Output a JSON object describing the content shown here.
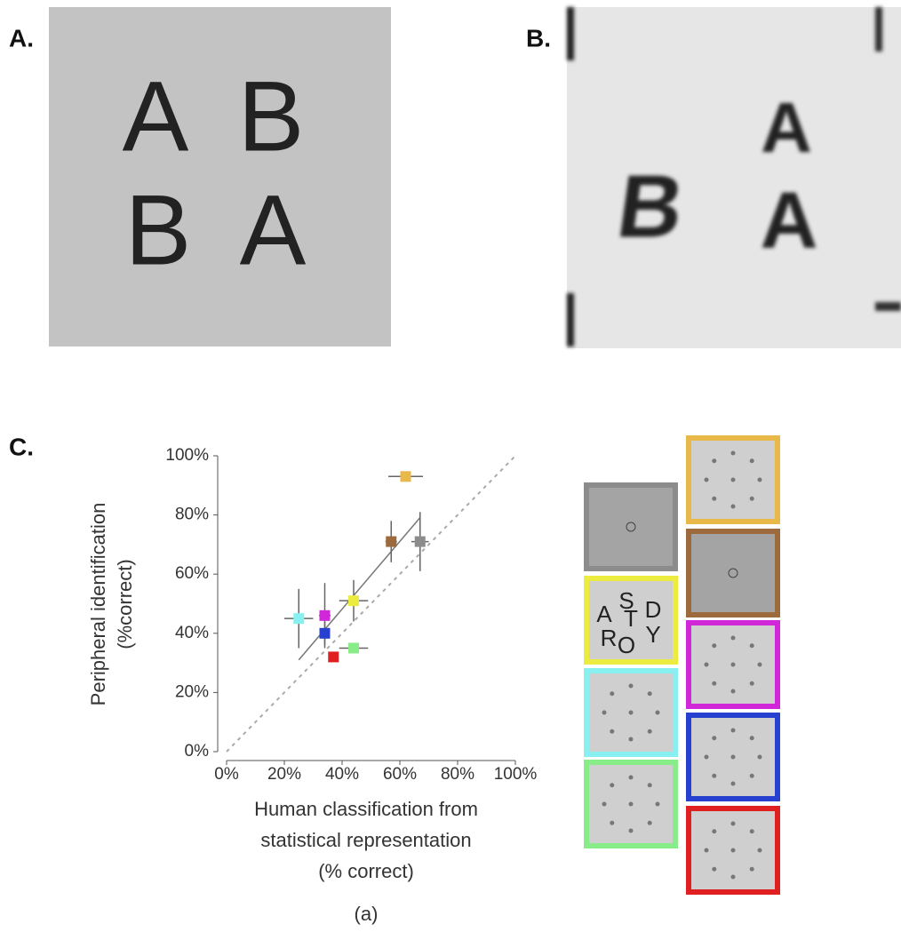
{
  "panels": {
    "a": {
      "label": "A.",
      "letters": [
        "A",
        "B",
        "B",
        "A"
      ]
    },
    "b": {
      "label": "B.",
      "letters": [
        "A",
        "B",
        "A"
      ]
    },
    "c": {
      "label": "C."
    }
  },
  "chart_data": {
    "type": "scatter",
    "ylabel": [
      "Peripheral identification",
      "(%correct)"
    ],
    "xlabel": [
      "Human classification from",
      "statistical representation",
      "(% correct)"
    ],
    "x": [
      62,
      57,
      67,
      44,
      34,
      25,
      34,
      44,
      37
    ],
    "values": [
      93,
      71,
      71,
      51,
      46,
      45,
      40,
      35,
      32
    ],
    "xerr": [
      6,
      2,
      3,
      5,
      2,
      5,
      1,
      5,
      1
    ],
    "yerr": [
      1,
      7,
      10,
      7,
      11,
      10,
      4,
      1,
      1
    ],
    "colors": [
      "#e8b848",
      "#9c6a3c",
      "#8c8c8c",
      "#ecec40",
      "#d028d8",
      "#88f0f0",
      "#2840d0",
      "#88ec88",
      "#e02020"
    ],
    "xlim": [
      0,
      100
    ],
    "ylim": [
      0,
      100
    ],
    "xticks": [
      {
        "value": 0,
        "label": "0%"
      },
      {
        "value": 20,
        "label": "20%"
      },
      {
        "value": 40,
        "label": "40%"
      },
      {
        "value": 60,
        "label": "60%"
      },
      {
        "value": 80,
        "label": "80%"
      },
      {
        "value": 100,
        "label": "100%"
      }
    ],
    "yticks": [
      {
        "value": 0,
        "label": "0%"
      },
      {
        "value": 20,
        "label": "20%"
      },
      {
        "value": 40,
        "label": "40%"
      },
      {
        "value": 60,
        "label": "60%"
      },
      {
        "value": 80,
        "label": "80%"
      },
      {
        "value": 100,
        "label": "100%"
      }
    ]
  },
  "stimuli": {
    "yellow_letters": [
      "A",
      "S",
      "T",
      "D",
      "R",
      "O",
      "Y"
    ]
  },
  "caption": "(a)"
}
